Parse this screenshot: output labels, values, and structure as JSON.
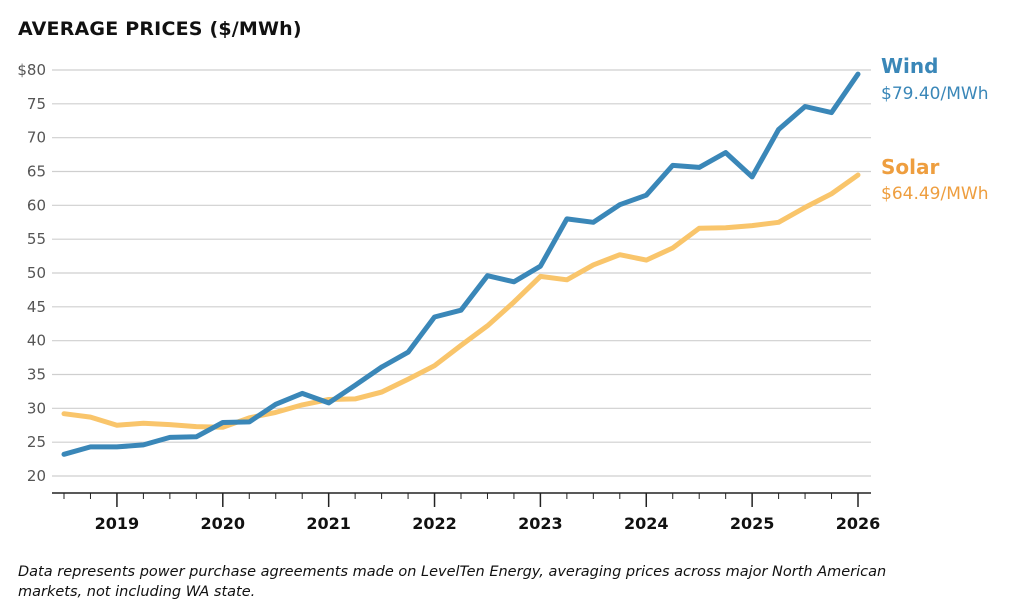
{
  "chart_data": {
    "type": "line",
    "title": "AVERAGE PRICES ($/MWh)",
    "xlabel": "",
    "ylabel": "",
    "ylim": [
      20,
      80
    ],
    "y_ticks": [
      "$80",
      "75",
      "70",
      "65",
      "60",
      "55",
      "50",
      "45",
      "40",
      "35",
      "30",
      "25",
      "20"
    ],
    "y_tick_values": [
      80,
      75,
      70,
      65,
      60,
      55,
      50,
      45,
      40,
      35,
      30,
      25,
      20
    ],
    "x_tick_labels": [
      "2019",
      "2020",
      "2021",
      "2022",
      "2023",
      "2024",
      "2025",
      "2026"
    ],
    "x_tick_values": [
      2019,
      2020,
      2021,
      2022,
      2023,
      2024,
      2025,
      2026
    ],
    "xlim": [
      2018.5,
      2026.0
    ],
    "x": [
      2018.5,
      2018.75,
      2019.0,
      2019.25,
      2019.5,
      2019.75,
      2020.0,
      2020.25,
      2020.5,
      2020.75,
      2021.0,
      2021.25,
      2021.5,
      2021.75,
      2022.0,
      2022.25,
      2022.5,
      2022.75,
      2023.0,
      2023.25,
      2023.5,
      2023.75,
      2024.0,
      2024.25,
      2024.5,
      2024.75,
      2025.0,
      2025.25,
      2025.5,
      2025.75,
      2026.0
    ],
    "grid": true,
    "series": [
      {
        "name": "Wind",
        "color": "#3a87b8",
        "end_label": "$79.40/MWh",
        "values": [
          23.2,
          24.3,
          24.3,
          24.6,
          25.7,
          25.8,
          27.9,
          28.0,
          30.6,
          32.2,
          30.8,
          33.4,
          36.1,
          38.3,
          43.5,
          44.5,
          49.6,
          48.7,
          51.0,
          58.0,
          57.5,
          60.1,
          61.5,
          65.9,
          65.6,
          67.8,
          64.2,
          71.2,
          74.6,
          73.7,
          79.4
        ]
      },
      {
        "name": "Solar",
        "color": "#f9c56b",
        "label_color": "#ee9e3f",
        "end_label": "$64.49/MWh",
        "values": [
          29.2,
          28.7,
          27.5,
          27.8,
          27.6,
          27.3,
          27.2,
          28.6,
          29.4,
          30.5,
          31.3,
          31.4,
          32.4,
          34.3,
          36.3,
          39.3,
          42.2,
          45.7,
          49.5,
          49.0,
          51.2,
          52.7,
          51.9,
          53.7,
          56.6,
          56.7,
          57.0,
          57.5,
          59.7,
          61.7,
          64.49
        ]
      }
    ]
  },
  "note": "Data represents power purchase agreements made on LevelTen Energy, averaging prices across major North American markets, not including WA state."
}
